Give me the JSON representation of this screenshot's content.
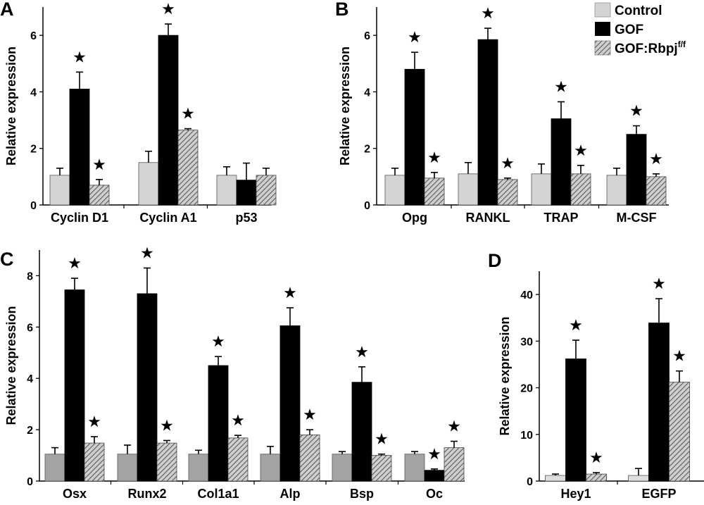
{
  "colors": {
    "control_ab": "#d4d4d4",
    "control_c": "#a3a3a3",
    "control_d": "#dedede",
    "gof": "#000000",
    "rbpj_hatch": "#5a5a5a",
    "rbpj_bg": "#cfcfcf",
    "errorbar": "#000000"
  },
  "legend": {
    "items": [
      {
        "label": "Control",
        "sup": "",
        "pattern": "control"
      },
      {
        "label": "GOF",
        "sup": "",
        "pattern": "gof"
      },
      {
        "label": "GOF:Rbpj",
        "sup": "f/f",
        "pattern": "rbpj"
      }
    ]
  },
  "star_symbol": "★",
  "chart_data": [
    {
      "panel": "A",
      "type": "bar",
      "ylabel": "Relative expression",
      "ylim": [
        0,
        7
      ],
      "yticks": [
        0,
        2,
        4,
        6
      ],
      "categories": [
        "Cyclin D1",
        "Cyclin A1",
        "p53"
      ],
      "series": [
        {
          "name": "Control",
          "values": [
            1.05,
            1.5,
            1.05
          ],
          "errors": [
            0.25,
            0.4,
            0.3
          ],
          "significant": [
            false,
            false,
            false
          ]
        },
        {
          "name": "GOF",
          "values": [
            4.1,
            6.0,
            0.88
          ],
          "errors": [
            0.6,
            0.4,
            0.6
          ],
          "significant": [
            true,
            true,
            false
          ]
        },
        {
          "name": "GOF:Rbpj",
          "values": [
            0.7,
            2.65,
            1.05
          ],
          "errors": [
            0.2,
            0.05,
            0.25
          ],
          "significant": [
            true,
            true,
            false
          ]
        }
      ]
    },
    {
      "panel": "B",
      "type": "bar",
      "ylabel": "Relative expression",
      "ylim": [
        0,
        7
      ],
      "yticks": [
        0,
        2,
        4,
        6
      ],
      "categories": [
        "Opg",
        "RANKL",
        "TRAP",
        "M-CSF"
      ],
      "series": [
        {
          "name": "Control",
          "values": [
            1.05,
            1.1,
            1.1,
            1.05
          ],
          "errors": [
            0.25,
            0.4,
            0.35,
            0.25
          ],
          "significant": [
            false,
            false,
            false,
            false
          ]
        },
        {
          "name": "GOF",
          "values": [
            4.8,
            5.85,
            3.05,
            2.5
          ],
          "errors": [
            0.6,
            0.4,
            0.6,
            0.3
          ],
          "significant": [
            true,
            true,
            true,
            true
          ]
        },
        {
          "name": "GOF:Rbpj",
          "values": [
            0.95,
            0.9,
            1.1,
            1.0
          ],
          "errors": [
            0.2,
            0.05,
            0.3,
            0.1
          ],
          "significant": [
            true,
            true,
            true,
            true
          ]
        }
      ]
    },
    {
      "panel": "C",
      "type": "bar",
      "ylabel": "Relative expression",
      "ylim": [
        0,
        9
      ],
      "yticks": [
        0,
        2,
        4,
        6,
        8
      ],
      "categories": [
        "Osx",
        "Runx2",
        "Col1a1",
        "Alp",
        "Bsp",
        "Oc"
      ],
      "series": [
        {
          "name": "Control",
          "values": [
            1.05,
            1.05,
            1.05,
            1.05,
            1.05,
            1.05
          ],
          "errors": [
            0.25,
            0.35,
            0.15,
            0.3,
            0.1,
            0.1
          ],
          "significant": [
            false,
            false,
            false,
            false,
            false,
            false
          ]
        },
        {
          "name": "GOF",
          "values": [
            7.45,
            7.3,
            4.5,
            6.05,
            3.85,
            0.42
          ],
          "errors": [
            0.45,
            1.0,
            0.35,
            0.7,
            0.6,
            0.05
          ],
          "significant": [
            true,
            true,
            true,
            true,
            true,
            true
          ]
        },
        {
          "name": "GOF:Rbpj",
          "values": [
            1.48,
            1.48,
            1.68,
            1.8,
            1.0,
            1.3
          ],
          "errors": [
            0.25,
            0.1,
            0.1,
            0.2,
            0.05,
            0.25
          ],
          "significant": [
            true,
            true,
            true,
            true,
            true,
            true
          ]
        }
      ]
    },
    {
      "panel": "D",
      "type": "bar",
      "ylabel": "Relative expression",
      "ylim": [
        0,
        45
      ],
      "yticks": [
        0,
        10,
        20,
        30,
        40
      ],
      "categories": [
        "Hey1",
        "EGFP"
      ],
      "series": [
        {
          "name": "Control",
          "values": [
            1.2,
            1.2
          ],
          "errors": [
            0.3,
            1.5
          ],
          "significant": [
            false,
            false
          ]
        },
        {
          "name": "GOF",
          "values": [
            26.2,
            33.9
          ],
          "errors": [
            4.0,
            5.2
          ],
          "significant": [
            true,
            true
          ]
        },
        {
          "name": "GOF:Rbpj",
          "values": [
            1.5,
            21.2
          ],
          "errors": [
            0.3,
            2.4
          ],
          "significant": [
            true,
            true
          ]
        }
      ]
    }
  ]
}
